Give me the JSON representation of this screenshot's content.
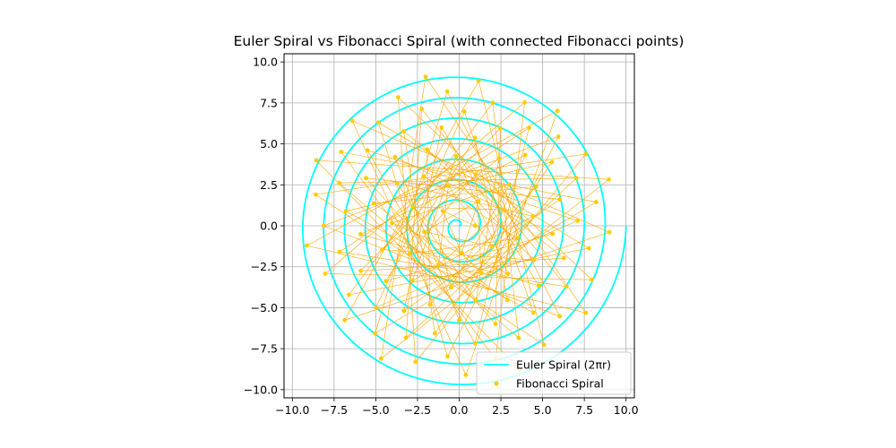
{
  "chart_data": {
    "type": "line",
    "title": "Euler Spiral vs Fibonacci Spiral (with connected Fibonacci points)",
    "xlabel": "",
    "ylabel": "",
    "xlim": [
      -10.5,
      10.5
    ],
    "ylim": [
      -10.5,
      10.5
    ],
    "xticks": [
      -10.0,
      -7.5,
      -5.0,
      -2.5,
      0.0,
      2.5,
      5.0,
      7.5,
      10.0
    ],
    "yticks": [
      -10.0,
      -7.5,
      -5.0,
      -2.5,
      0.0,
      2.5,
      5.0,
      7.5,
      10.0
    ],
    "xtick_labels": [
      "−10.0",
      "−7.5",
      "−5.0",
      "−2.5",
      "0.0",
      "2.5",
      "5.0",
      "7.5",
      "10.0"
    ],
    "ytick_labels": [
      "−10.0",
      "−7.5",
      "−5.0",
      "−2.5",
      "0.0",
      "2.5",
      "5.0",
      "7.5",
      "10.0"
    ],
    "grid": true,
    "legend_position": "bottom-right",
    "series": [
      {
        "name": "Euler Spiral (2πr)",
        "kind": "line",
        "color": "#00ffff",
        "r_max": 10.0,
        "turns": 8
      },
      {
        "name": "Fibonacci Spiral",
        "kind": "connected-scatter",
        "color": "#ffcc00",
        "line_color": "#ffa500",
        "point_count": 100,
        "r_max": 9.5,
        "angle_step_deg": 137.5
      }
    ]
  }
}
